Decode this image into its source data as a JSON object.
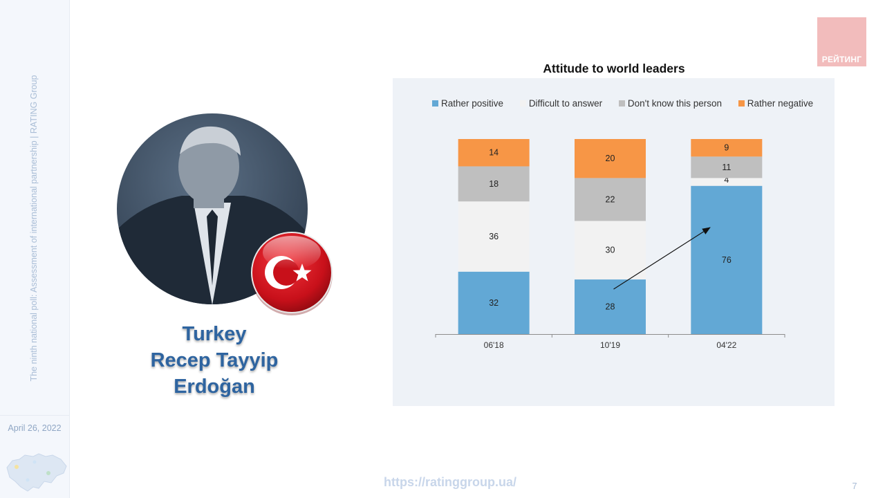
{
  "sidebar": {
    "vertical_text": "The ninth national poll: Assessment of international partnership | RATING Group",
    "date": "April 26, 2022"
  },
  "logo": {
    "text": "РЕЙТИНГ",
    "color": "#f2bcbc"
  },
  "leader": {
    "country": "Turkey",
    "name": "Recep Tayyip Erdoğan"
  },
  "footer": {
    "url": "https://ratinggroup.ua/",
    "page_number": "7"
  },
  "chart_data": {
    "type": "bar",
    "stacked": true,
    "title": "Attitude to world leaders",
    "xlabel": "",
    "ylabel": "",
    "ylim": [
      0,
      100
    ],
    "grid": false,
    "legend_position": "top",
    "categories": [
      "06'18",
      "10'19",
      "04'22"
    ],
    "series": [
      {
        "name": "Rather positive",
        "color": "#62a8d5",
        "values": [
          32,
          28,
          76
        ]
      },
      {
        "name": "Difficult to answer",
        "color": "#f2f2f2",
        "values": [
          36,
          30,
          4
        ]
      },
      {
        "name": "Don't know this person",
        "color": "#bfbfbf",
        "values": [
          18,
          22,
          11
        ]
      },
      {
        "name": "Rather negative",
        "color": "#f79646",
        "values": [
          14,
          20,
          9
        ]
      }
    ],
    "annotations": [
      {
        "type": "trend-arrow",
        "from_category": "10'19",
        "to_category": "04'22"
      }
    ]
  }
}
